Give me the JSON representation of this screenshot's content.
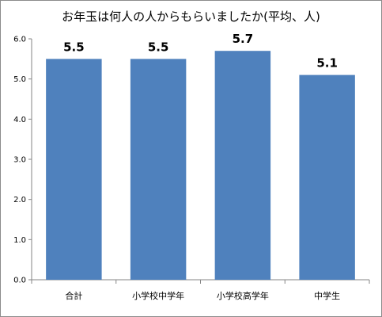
{
  "chart_data": {
    "type": "bar",
    "title": "お年玉は何人の人からもらいましたか(平均、人)",
    "categories": [
      "合計",
      "小学校中学年",
      "小学校高学年",
      "中学生"
    ],
    "values": [
      5.5,
      5.5,
      5.7,
      5.1
    ],
    "data_labels": [
      "5.5",
      "5.5",
      "5.7",
      "5.1"
    ],
    "y_ticks": [
      "0.0",
      "1.0",
      "2.0",
      "3.0",
      "4.0",
      "5.0",
      "6.0"
    ],
    "ylim": [
      0,
      6
    ],
    "xlabel": "",
    "ylabel": "",
    "grid": false,
    "legend": "none",
    "bar_color": "#4f81bd"
  }
}
